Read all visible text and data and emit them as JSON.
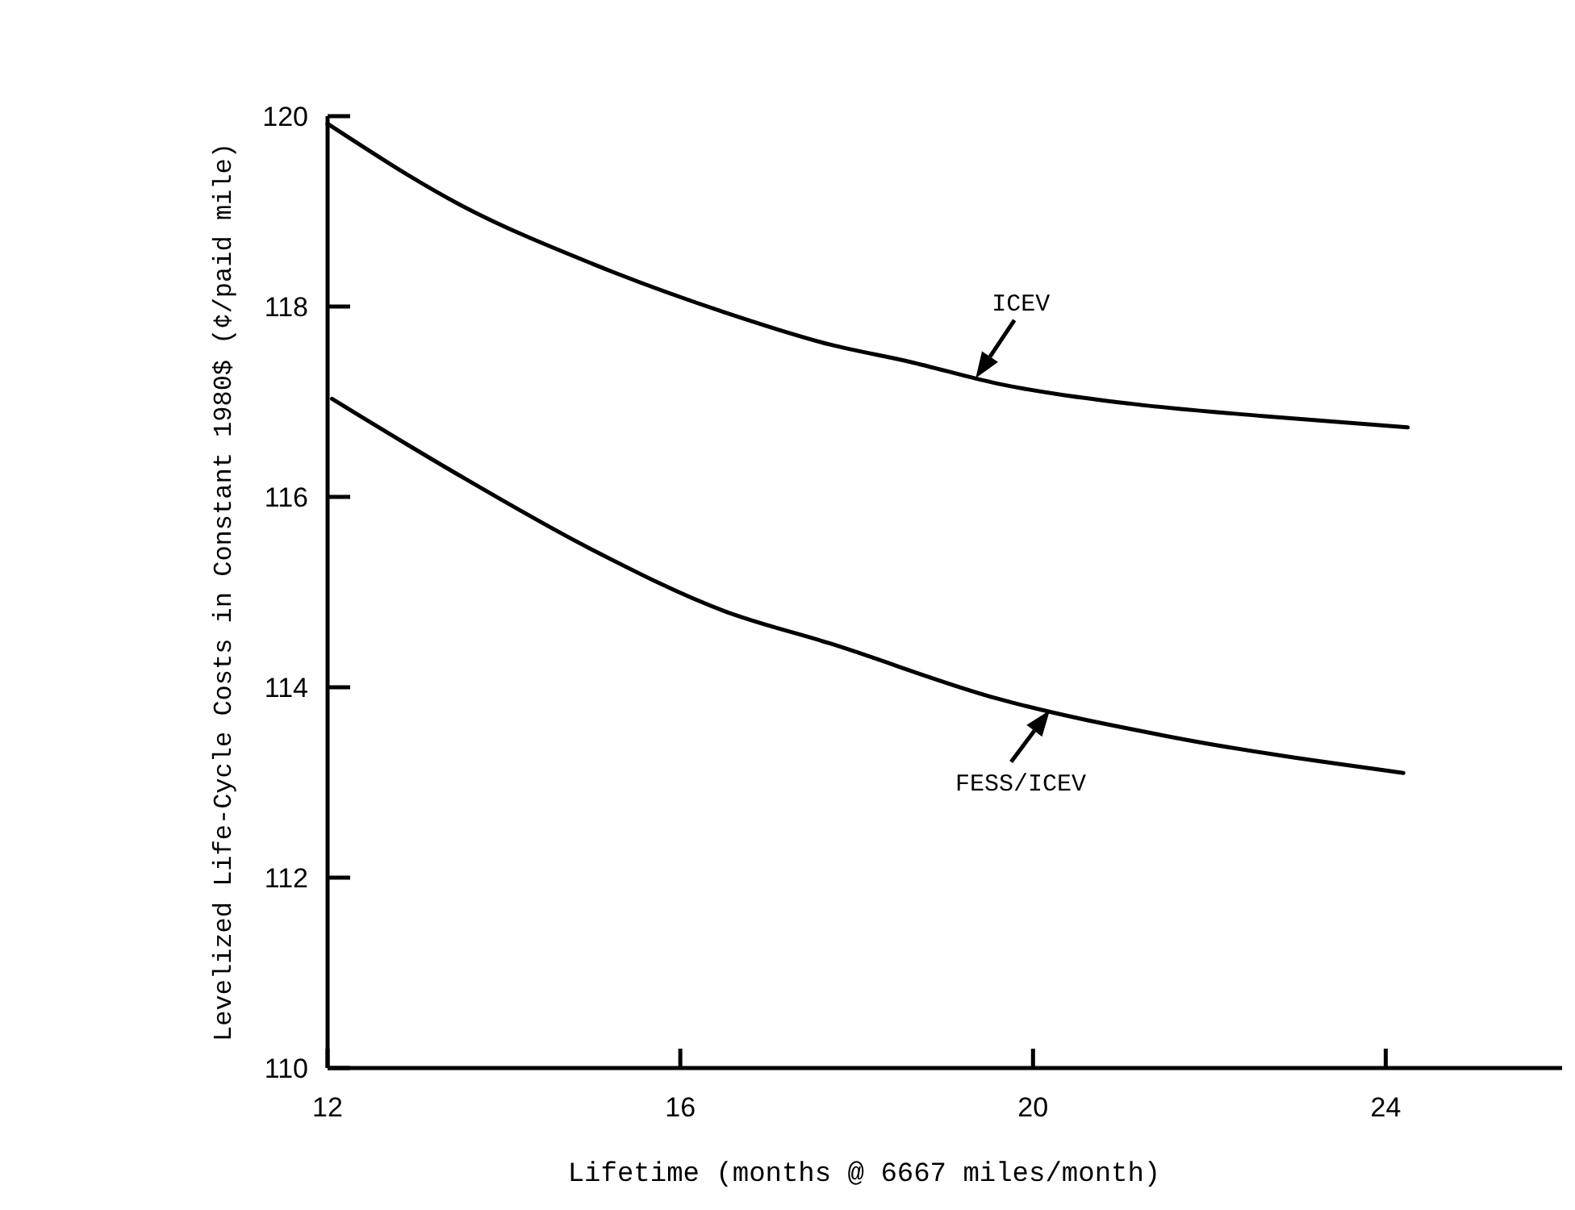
{
  "chart_data": {
    "type": "line",
    "xlabel": "Lifetime (months @ 6667 miles/month)",
    "ylabel": "Levelized Life-Cycle Costs in Constant 1980$ (¢/paid mile)",
    "xlim": [
      12,
      26
    ],
    "xticks": [
      12,
      16,
      20,
      24
    ],
    "ylim": [
      110,
      120
    ],
    "yticks": [
      110,
      112,
      114,
      116,
      118,
      120
    ],
    "grid": false,
    "marker": "none",
    "line_style": "solid",
    "series": [
      {
        "name": "ICEV",
        "color": "#000000",
        "x": [
          12,
          13.5,
          15,
          16.5,
          17.7,
          18.6,
          19.6,
          21.1,
          22.6,
          24.25
        ],
        "values": [
          119.92,
          119.07,
          118.45,
          117.94,
          117.6,
          117.42,
          117.19,
          116.98,
          116.85,
          116.73
        ]
      },
      {
        "name": "FESS/ICEV",
        "color": "#000000",
        "x": [
          12.05,
          13.45,
          14.97,
          16.5,
          17.7,
          19.6,
          21.5,
          24.2
        ],
        "values": [
          117.03,
          116.25,
          115.46,
          114.8,
          114.46,
          113.88,
          113.49,
          113.1
        ]
      }
    ]
  }
}
